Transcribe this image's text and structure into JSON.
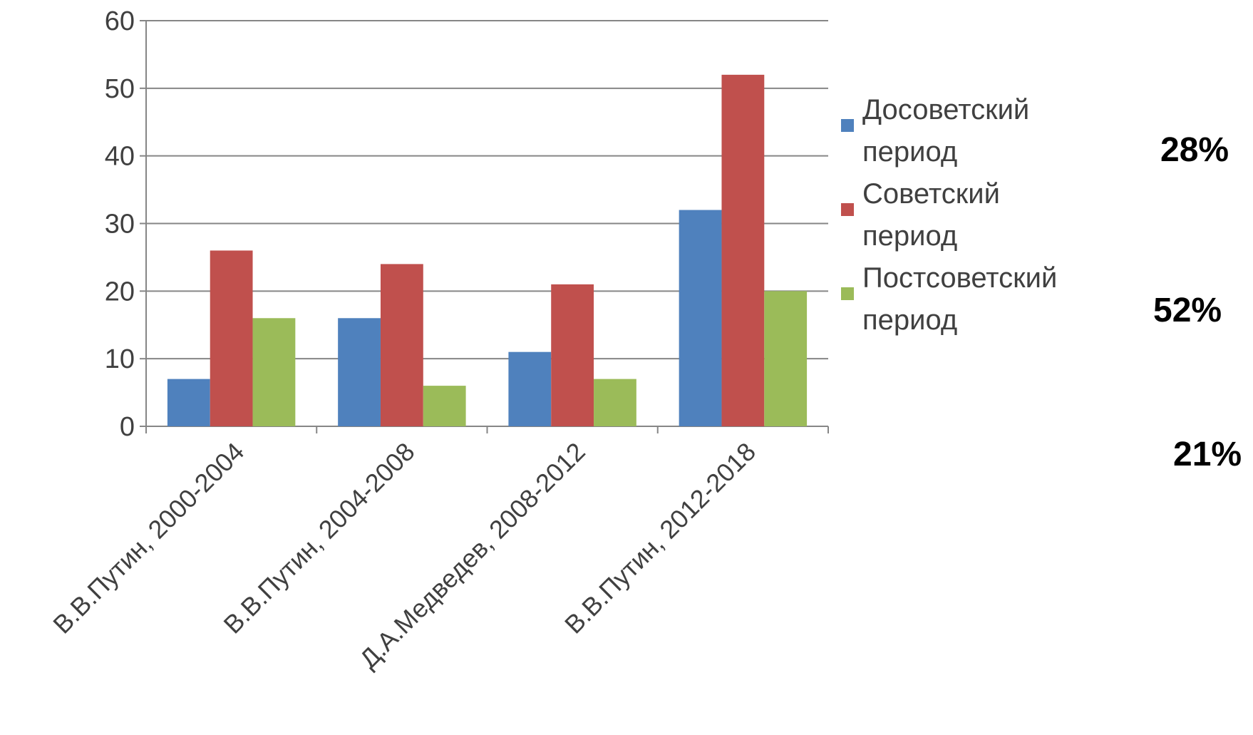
{
  "chart_data": {
    "type": "bar",
    "title": "",
    "xlabel": "",
    "ylabel": "",
    "ylim": [
      0,
      60
    ],
    "yticks": [
      "0",
      "10",
      "20",
      "30",
      "40",
      "50",
      "60"
    ],
    "grid": true,
    "legend_position": "right",
    "categories": [
      "В.В.Путин, 2000-2004",
      "В.В.Путин, 2004-2008",
      "Д.А.Медведев, 2008-2012",
      "В.В.Путин, 2012-2018"
    ],
    "series": [
      {
        "name": "Досоветский период",
        "color": "#4F81BD",
        "values": [
          7,
          16,
          11,
          32
        ]
      },
      {
        "name": "Советский период",
        "color": "#C0504D",
        "values": [
          26,
          24,
          21,
          52
        ]
      },
      {
        "name": "Постсоветский период",
        "color": "#9BBB59",
        "values": [
          16,
          6,
          7,
          20
        ]
      }
    ]
  },
  "annotations": [
    "28%",
    "52%",
    "21%"
  ]
}
